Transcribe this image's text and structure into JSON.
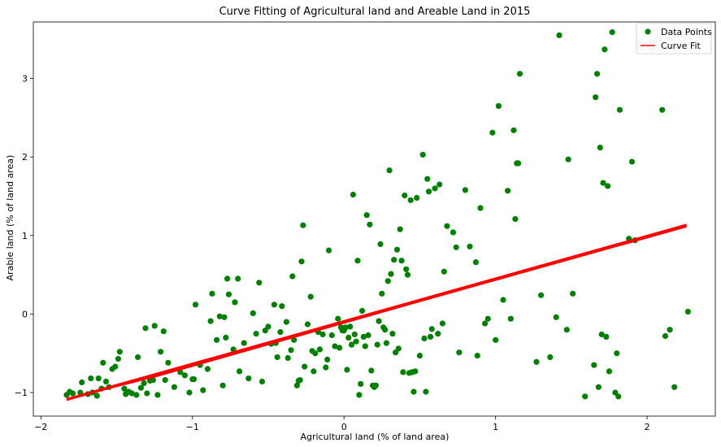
{
  "chart_data": {
    "type": "scatter",
    "title": "Curve Fitting of Agricultural land and Areable Land in 2015",
    "xlabel": "Agricultural land (% of land area)",
    "ylabel": "Arable land (% of land area)",
    "xlim": [
      -2.05,
      2.45
    ],
    "ylim": [
      -1.3,
      3.72
    ],
    "xticks": [
      -2,
      -1,
      0,
      1,
      2
    ],
    "xtick_labels": [
      "−2",
      "−1",
      "0",
      "1",
      "2"
    ],
    "yticks": [
      -1,
      0,
      1,
      2,
      3
    ],
    "ytick_labels": [
      "−1",
      "0",
      "1",
      "2",
      "3"
    ],
    "grid": false,
    "legend_position": "top-right",
    "series": [
      {
        "name": "Data Points",
        "kind": "scatter",
        "color": "#008000",
        "points": [
          [
            -1.83,
            -1.03
          ],
          [
            -1.81,
            -0.99
          ],
          [
            -1.79,
            -1.01
          ],
          [
            -1.74,
            -1.0
          ],
          [
            -1.73,
            -0.87
          ],
          [
            -1.69,
            -1.02
          ],
          [
            -1.67,
            -0.82
          ],
          [
            -1.66,
            -1.0
          ],
          [
            -1.63,
            -1.04
          ],
          [
            -1.62,
            -0.82
          ],
          [
            -1.6,
            -0.95
          ],
          [
            -1.59,
            -0.62
          ],
          [
            -1.57,
            -0.86
          ],
          [
            -1.55,
            -0.93
          ],
          [
            -1.53,
            -0.7
          ],
          [
            -1.51,
            -0.67
          ],
          [
            -1.49,
            -0.57
          ],
          [
            -1.48,
            -0.48
          ],
          [
            -1.45,
            -0.95
          ],
          [
            -1.44,
            -1.02
          ],
          [
            -1.42,
            -0.99
          ],
          [
            -1.4,
            -1.01
          ],
          [
            -1.37,
            -1.03
          ],
          [
            -1.36,
            -0.55
          ],
          [
            -1.34,
            -0.94
          ],
          [
            -1.32,
            -0.88
          ],
          [
            -1.31,
            -0.18
          ],
          [
            -1.3,
            -1.01
          ],
          [
            -1.28,
            -0.85
          ],
          [
            -1.26,
            -0.84
          ],
          [
            -1.25,
            -0.15
          ],
          [
            -1.23,
            -1.03
          ],
          [
            -1.21,
            -0.48
          ],
          [
            -1.19,
            -0.22
          ],
          [
            -1.18,
            -0.84
          ],
          [
            -1.16,
            -0.62
          ],
          [
            -1.12,
            -0.93
          ],
          [
            -1.08,
            -0.74
          ],
          [
            -1.05,
            -0.78
          ],
          [
            -1.02,
            -1.0
          ],
          [
            -1.0,
            -0.83
          ],
          [
            -0.99,
            -0.83
          ],
          [
            -0.98,
            0.12
          ],
          [
            -0.95,
            -0.65
          ],
          [
            -0.93,
            -0.97
          ],
          [
            -0.9,
            -0.7
          ],
          [
            -0.88,
            -0.09
          ],
          [
            -0.87,
            0.26
          ],
          [
            -0.84,
            -0.33
          ],
          [
            -0.82,
            -0.03
          ],
          [
            -0.8,
            -0.91
          ],
          [
            -0.79,
            -0.04
          ],
          [
            -0.78,
            -0.3
          ],
          [
            -0.77,
            0.45
          ],
          [
            -0.76,
            0.25
          ],
          [
            -0.73,
            -0.45
          ],
          [
            -0.72,
            0.15
          ],
          [
            -0.7,
            0.45
          ],
          [
            -0.69,
            -0.73
          ],
          [
            -0.66,
            -0.37
          ],
          [
            -0.63,
            -0.82
          ],
          [
            -0.6,
            0.01
          ],
          [
            -0.58,
            -0.25
          ],
          [
            -0.56,
            0.4
          ],
          [
            -0.54,
            -0.86
          ],
          [
            -0.52,
            -0.21
          ],
          [
            -0.5,
            -0.16
          ],
          [
            -0.48,
            -0.38
          ],
          [
            -0.46,
            0.12
          ],
          [
            -0.45,
            -0.37
          ],
          [
            -0.44,
            -0.55
          ],
          [
            -0.42,
            -0.23
          ],
          [
            -0.41,
            0.1
          ],
          [
            -0.38,
            -0.1
          ],
          [
            -0.37,
            -0.56
          ],
          [
            -0.35,
            -0.46
          ],
          [
            -0.34,
            0.48
          ],
          [
            -0.33,
            -0.33
          ],
          [
            -0.31,
            -0.91
          ],
          [
            -0.3,
            -0.85
          ],
          [
            -0.29,
            -0.84
          ],
          [
            -0.28,
            0.67
          ],
          [
            -0.27,
            1.13
          ],
          [
            -0.26,
            -0.67
          ],
          [
            -0.24,
            -0.13
          ],
          [
            -0.22,
            0.22
          ],
          [
            -0.21,
            -0.47
          ],
          [
            -0.2,
            -0.73
          ],
          [
            -0.19,
            -0.5
          ],
          [
            -0.17,
            -0.23
          ],
          [
            -0.16,
            -0.45
          ],
          [
            -0.14,
            -0.26
          ],
          [
            -0.12,
            -0.68
          ],
          [
            -0.11,
            -0.58
          ],
          [
            -0.1,
            0.81
          ],
          [
            -0.08,
            -0.27
          ],
          [
            -0.06,
            -0.41
          ],
          [
            -0.04,
            -0.06
          ],
          [
            -0.03,
            -0.43
          ],
          [
            -0.02,
            -0.17
          ],
          [
            -0.01,
            -0.21
          ],
          [
            0.0,
            -0.21
          ],
          [
            0.01,
            -0.17
          ],
          [
            0.02,
            -0.71
          ],
          [
            0.03,
            -0.3
          ],
          [
            0.04,
            -0.16
          ],
          [
            0.05,
            -0.39
          ],
          [
            0.06,
            1.52
          ],
          [
            0.07,
            -0.26
          ],
          [
            0.08,
            -0.35
          ],
          [
            0.09,
            0.68
          ],
          [
            0.1,
            -1.03
          ],
          [
            0.11,
            -0.89
          ],
          [
            0.12,
            0.04
          ],
          [
            0.13,
            -0.29
          ],
          [
            0.14,
            -0.41
          ],
          [
            0.15,
            1.26
          ],
          [
            0.16,
            -0.27
          ],
          [
            0.17,
            1.14
          ],
          [
            0.18,
            -0.72
          ],
          [
            0.19,
            -0.91
          ],
          [
            0.2,
            -0.93
          ],
          [
            0.21,
            -0.91
          ],
          [
            0.22,
            -0.39
          ],
          [
            0.23,
            -0.09
          ],
          [
            0.24,
            0.89
          ],
          [
            0.25,
            0.26
          ],
          [
            0.26,
            -0.17
          ],
          [
            0.27,
            -0.2
          ],
          [
            0.28,
            -0.37
          ],
          [
            0.29,
            0.42
          ],
          [
            0.3,
            1.83
          ],
          [
            0.31,
            0.51
          ],
          [
            0.32,
            -0.25
          ],
          [
            0.33,
            0.69
          ],
          [
            0.34,
            -0.49
          ],
          [
            0.35,
            0.82
          ],
          [
            0.36,
            -0.44
          ],
          [
            0.37,
            1.08
          ],
          [
            0.38,
            0.68
          ],
          [
            0.39,
            -0.74
          ],
          [
            0.4,
            1.51
          ],
          [
            0.41,
            0.57
          ],
          [
            0.42,
            0.5
          ],
          [
            0.43,
            -0.75
          ],
          [
            0.44,
            1.45
          ],
          [
            0.45,
            -0.74
          ],
          [
            0.46,
            -0.99
          ],
          [
            0.47,
            -0.73
          ],
          [
            0.48,
            1.48
          ],
          [
            0.5,
            -0.53
          ],
          [
            0.52,
            2.03
          ],
          [
            0.53,
            -0.31
          ],
          [
            0.54,
            -0.99
          ],
          [
            0.55,
            1.72
          ],
          [
            0.56,
            1.56
          ],
          [
            0.57,
            -0.29
          ],
          [
            0.58,
            -0.19
          ],
          [
            0.6,
            1.6
          ],
          [
            0.62,
            -0.25
          ],
          [
            0.63,
            1.65
          ],
          [
            0.65,
            -0.12
          ],
          [
            0.66,
            0.54
          ],
          [
            0.68,
            1.12
          ],
          [
            0.72,
            1.04
          ],
          [
            0.74,
            0.85
          ],
          [
            0.76,
            -0.49
          ],
          [
            0.8,
            1.58
          ],
          [
            0.83,
            0.86
          ],
          [
            0.87,
            0.66
          ],
          [
            0.88,
            -0.53
          ],
          [
            0.9,
            1.35
          ],
          [
            0.93,
            -0.12
          ],
          [
            0.95,
            -0.06
          ],
          [
            0.98,
            2.31
          ],
          [
            1.0,
            -0.33
          ],
          [
            1.02,
            2.65
          ],
          [
            1.05,
            0.18
          ],
          [
            1.08,
            1.57
          ],
          [
            1.1,
            -0.06
          ],
          [
            1.12,
            2.34
          ],
          [
            1.13,
            1.21
          ],
          [
            1.14,
            1.92
          ],
          [
            1.15,
            1.92
          ],
          [
            1.16,
            3.06
          ],
          [
            1.27,
            -0.61
          ],
          [
            1.3,
            0.24
          ],
          [
            1.36,
            -0.55
          ],
          [
            1.4,
            -0.04
          ],
          [
            1.42,
            3.55
          ],
          [
            1.47,
            -0.2
          ],
          [
            1.48,
            1.97
          ],
          [
            1.51,
            0.26
          ],
          [
            1.59,
            -1.05
          ],
          [
            1.65,
            -0.65
          ],
          [
            1.66,
            2.76
          ],
          [
            1.67,
            3.06
          ],
          [
            1.68,
            -0.93
          ],
          [
            1.69,
            2.12
          ],
          [
            1.7,
            -0.26
          ],
          [
            1.71,
            1.67
          ],
          [
            1.72,
            3.37
          ],
          [
            1.73,
            -0.29
          ],
          [
            1.74,
            1.63
          ],
          [
            1.75,
            -0.73
          ],
          [
            1.77,
            3.59
          ],
          [
            1.79,
            -1.0
          ],
          [
            1.8,
            -0.5
          ],
          [
            1.81,
            -1.05
          ],
          [
            1.82,
            2.6
          ],
          [
            1.88,
            0.96
          ],
          [
            1.9,
            1.94
          ],
          [
            1.92,
            0.94
          ],
          [
            2.1,
            2.6
          ],
          [
            2.12,
            -0.28
          ],
          [
            2.15,
            -0.2
          ],
          [
            2.18,
            -0.93
          ],
          [
            2.27,
            0.03
          ]
        ]
      },
      {
        "name": "Curve Fit",
        "kind": "line",
        "color": "#ff0000",
        "points": [
          [
            -1.83,
            -1.08
          ],
          [
            2.26,
            1.14
          ]
        ],
        "band_half_width": 0.035
      }
    ]
  }
}
